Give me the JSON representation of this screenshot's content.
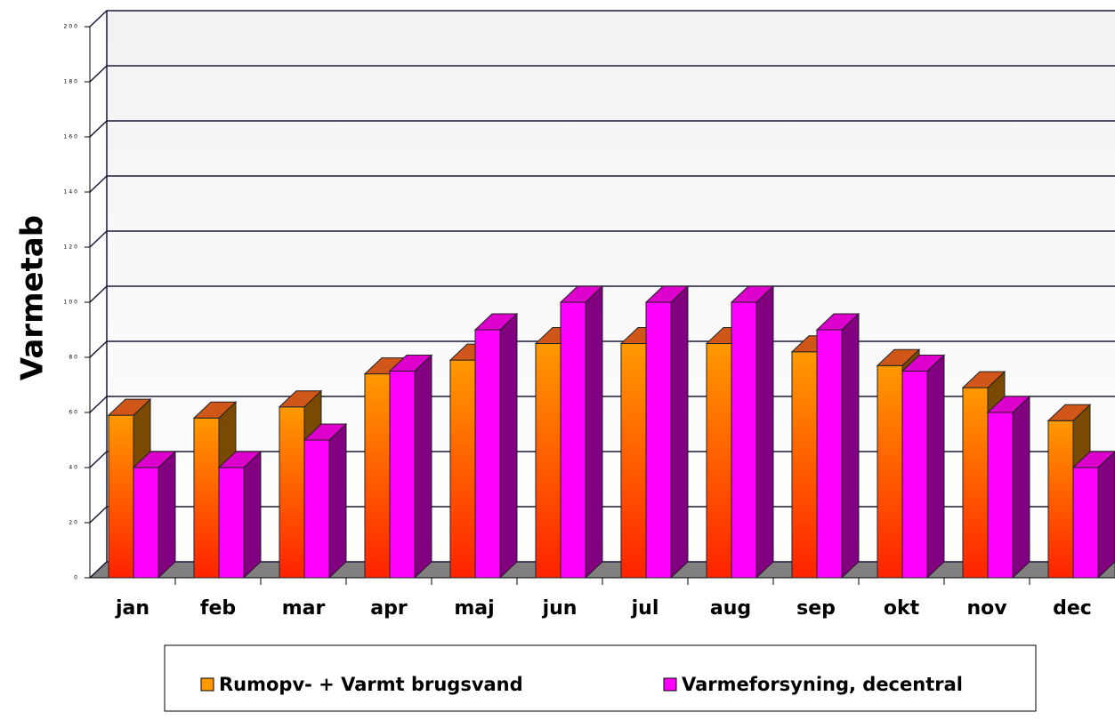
{
  "chart_data": {
    "type": "bar",
    "y_label": "Varmetab",
    "categories": [
      "jan",
      "feb",
      "mar",
      "apr",
      "maj",
      "jun",
      "jul",
      "aug",
      "sep",
      "okt",
      "nov",
      "dec"
    ],
    "series": [
      {
        "name": "Rumopv- + Varmt brugsvand",
        "color": "#ff9900",
        "values": [
          59,
          58,
          62,
          74,
          79,
          85,
          85,
          85,
          82,
          77,
          69,
          57
        ]
      },
      {
        "name": "Varmeforsyning, decentral",
        "color": "#ff00ff",
        "values": [
          40,
          40,
          50,
          75,
          90,
          100,
          100,
          100,
          90,
          75,
          60,
          40
        ]
      }
    ],
    "ylim": [
      0,
      200
    ],
    "yticks": [
      0,
      20,
      40,
      60,
      80,
      100,
      120,
      140,
      160,
      180,
      200
    ],
    "grid": true
  }
}
